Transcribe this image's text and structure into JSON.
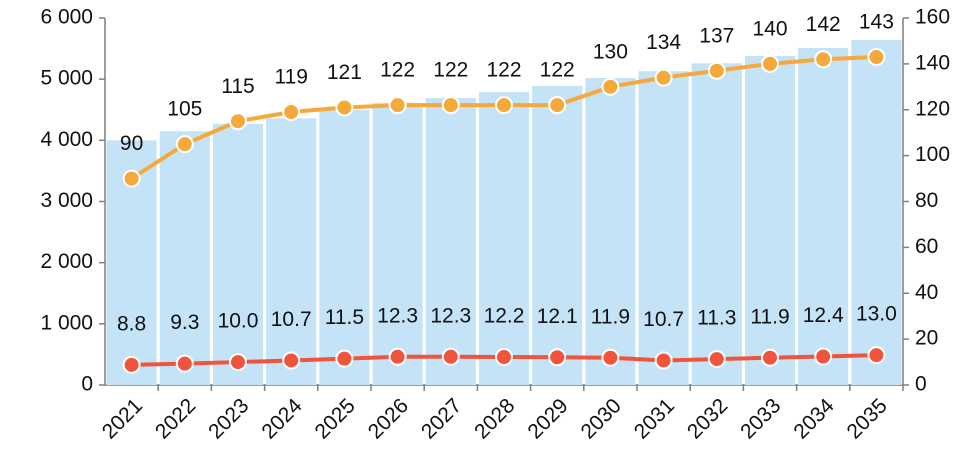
{
  "chart_data": {
    "type": "bar",
    "categories": [
      "2021",
      "2022",
      "2023",
      "2024",
      "2025",
      "2026",
      "2027",
      "2028",
      "2029",
      "2030",
      "2031",
      "2032",
      "2033",
      "2034",
      "2035"
    ],
    "series": [
      {
        "type": "bar",
        "color": "#c5e3f6",
        "values": [
          4000,
          4150,
          4270,
          4360,
          4500,
          4610,
          4690,
          4790,
          4890,
          5020,
          5130,
          5260,
          5380,
          5510,
          5640
        ]
      },
      {
        "type": "line",
        "axis": "y2",
        "color": "#f4a93a",
        "values": [
          90,
          105,
          115,
          119,
          121,
          122,
          122,
          122,
          122,
          130,
          134,
          137,
          140,
          142,
          143
        ]
      },
      {
        "type": "line",
        "axis": "y2",
        "color": "#f0543c",
        "values": [
          8.8,
          9.3,
          10.0,
          10.7,
          11.5,
          12.3,
          12.3,
          12.2,
          12.1,
          11.9,
          10.7,
          11.3,
          11.9,
          12.4,
          13.0
        ],
        "value_labels": [
          "8.8",
          "9.3",
          "10.0",
          "10.7",
          "11.5",
          "12.3",
          "12.3",
          "12.2",
          "12.1",
          "11.9",
          "10.7",
          "11.3",
          "11.9",
          "12.4",
          "13.0"
        ]
      }
    ],
    "ylim": [
      0,
      6000
    ],
    "yticks": [
      {
        "value": 0,
        "label": "0"
      },
      {
        "value": 1000,
        "label": "1 000"
      },
      {
        "value": 2000,
        "label": "2 000"
      },
      {
        "value": 3000,
        "label": "3 000"
      },
      {
        "value": 4000,
        "label": "4 000"
      },
      {
        "value": 5000,
        "label": "5 000"
      },
      {
        "value": 6000,
        "label": "6 000"
      }
    ],
    "y2lim": [
      0,
      160
    ],
    "y2ticks": [
      0,
      20,
      40,
      60,
      80,
      100,
      120,
      140,
      160
    ]
  }
}
